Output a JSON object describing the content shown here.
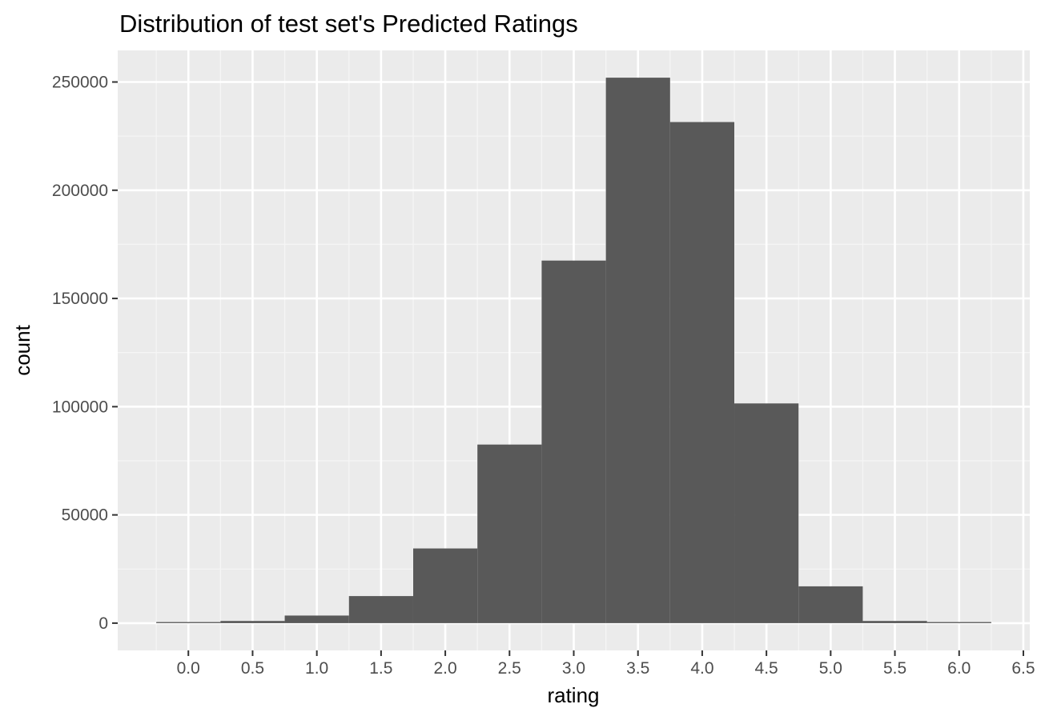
{
  "chart_data": {
    "type": "bar",
    "title": "Distribution of test set's Predicted Ratings",
    "xlabel": "rating",
    "ylabel": "count",
    "bin_width": 0.5,
    "bins": [
      {
        "center": 0.0,
        "count": 500
      },
      {
        "center": 0.5,
        "count": 1000
      },
      {
        "center": 1.0,
        "count": 3500
      },
      {
        "center": 1.5,
        "count": 12500
      },
      {
        "center": 2.0,
        "count": 34500
      },
      {
        "center": 2.5,
        "count": 82500
      },
      {
        "center": 3.0,
        "count": 167500
      },
      {
        "center": 3.5,
        "count": 252000
      },
      {
        "center": 4.0,
        "count": 231500
      },
      {
        "center": 4.5,
        "count": 101500
      },
      {
        "center": 5.0,
        "count": 17000
      },
      {
        "center": 5.5,
        "count": 1000
      },
      {
        "center": 6.0,
        "count": 500
      }
    ],
    "xlim": [
      -0.55,
      6.55
    ],
    "ylim": [
      -12600,
      264600
    ],
    "x_ticks": [
      0.0,
      0.5,
      1.0,
      1.5,
      2.0,
      2.5,
      3.0,
      3.5,
      4.0,
      4.5,
      5.0,
      5.5,
      6.0,
      6.5
    ],
    "x_tick_labels": [
      "0.0",
      "0.5",
      "1.0",
      "1.5",
      "2.0",
      "2.5",
      "3.0",
      "3.5",
      "4.0",
      "4.5",
      "5.0",
      "5.5",
      "6.0",
      "6.5"
    ],
    "y_ticks": [
      0,
      50000,
      100000,
      150000,
      200000,
      250000
    ],
    "y_tick_labels": [
      "0",
      "50000",
      "100000",
      "150000",
      "200000",
      "250000"
    ],
    "grid": true,
    "legend": "none",
    "colors": {
      "panel_background": "#ebebeb",
      "grid_major": "#ffffff",
      "grid_minor": "#f5f5f5",
      "bar_fill": "#595959",
      "tick_mark": "#333333"
    }
  }
}
